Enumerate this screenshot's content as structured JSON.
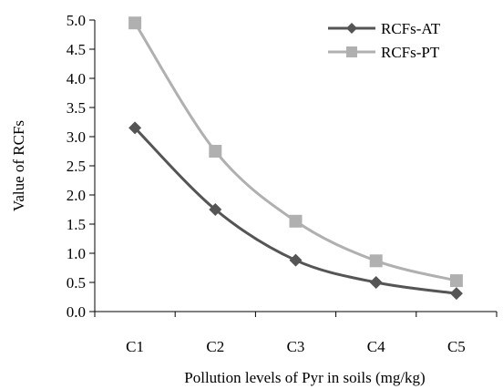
{
  "chart_data": {
    "type": "line",
    "title": "",
    "xlabel": "Pollution levels of Pyr in soils (mg/kg)",
    "ylabel": "Value of RCFs",
    "categories": [
      "C1",
      "C2",
      "C3",
      "C4",
      "C5"
    ],
    "ylim": [
      0.0,
      5.0
    ],
    "yticks": [
      "0.0",
      "0.5",
      "1.0",
      "1.5",
      "2.0",
      "2.5",
      "3.0",
      "3.5",
      "4.0",
      "4.5",
      "5.0"
    ],
    "grid": false,
    "legend_position": "top-right",
    "smooth": true,
    "series": [
      {
        "name": "RCFs-AT",
        "marker": "diamond",
        "color": "#555555",
        "values": [
          3.15,
          1.75,
          0.88,
          0.5,
          0.31
        ]
      },
      {
        "name": "RCFs-PT",
        "marker": "square",
        "color": "#b0b0b0",
        "values": [
          4.95,
          2.75,
          1.55,
          0.87,
          0.53
        ]
      }
    ]
  }
}
